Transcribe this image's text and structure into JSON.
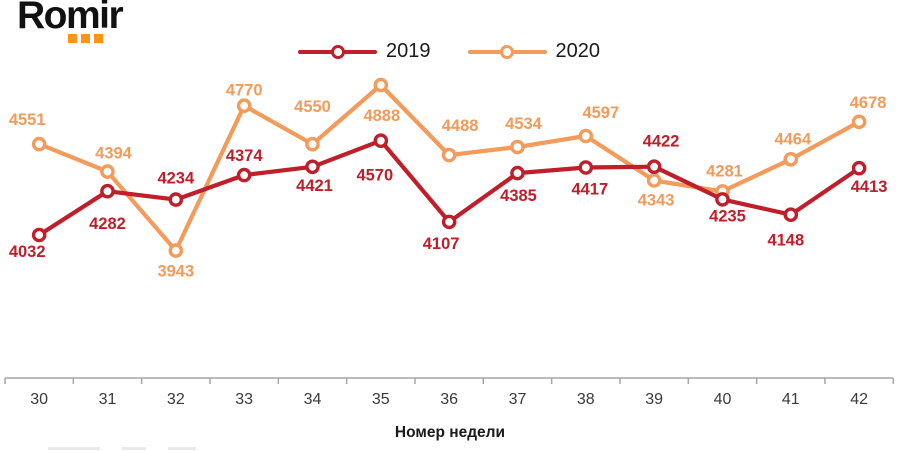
{
  "logo": {
    "text": "Romir",
    "text_color": "#111111",
    "accent_color": "#F7941E"
  },
  "chart_data": {
    "type": "line",
    "title": "",
    "xlabel": "Номер недели",
    "ylabel": "",
    "x": [
      "30",
      "31",
      "32",
      "33",
      "34",
      "35",
      "36",
      "37",
      "38",
      "39",
      "40",
      "41",
      "42"
    ],
    "grid": false,
    "legend_position": "top-center",
    "axis_color": "#A6A6A6",
    "tick_label_color": "#3A3A3A",
    "marker_style": "open-circle",
    "series": [
      {
        "name": "2019",
        "color": "#BF1E2A",
        "values": [
          4032,
          4282,
          4234,
          4374,
          4421,
          4570,
          4107,
          4385,
          4417,
          4422,
          4235,
          4148,
          4413
        ],
        "label_offsets": [
          [
            -12,
            22
          ],
          [
            0,
            38
          ],
          [
            0,
            -16
          ],
          [
            0,
            -14
          ],
          [
            2,
            24
          ],
          [
            -6,
            40
          ],
          [
            -8,
            27
          ],
          [
            1,
            28
          ],
          [
            4,
            27
          ],
          [
            7,
            -20
          ],
          [
            5,
            22
          ],
          [
            -5,
            31
          ],
          [
            10,
            24
          ]
        ]
      },
      {
        "name": "2020",
        "color": "#F29B5A",
        "values": [
          4551,
          4394,
          3943,
          4770,
          4550,
          4888,
          4488,
          4534,
          4597,
          4343,
          4281,
          4464,
          4678
        ],
        "label_offsets": [
          [
            -12,
            -19
          ],
          [
            6,
            -13
          ],
          [
            0,
            26
          ],
          [
            0,
            -10
          ],
          [
            0,
            -32
          ],
          [
            1,
            36
          ],
          [
            11,
            -24
          ],
          [
            6,
            -18
          ],
          [
            15,
            -18
          ],
          [
            2,
            25
          ],
          [
            2,
            -15
          ],
          [
            2,
            -15
          ],
          [
            9,
            -14
          ]
        ]
      }
    ]
  }
}
